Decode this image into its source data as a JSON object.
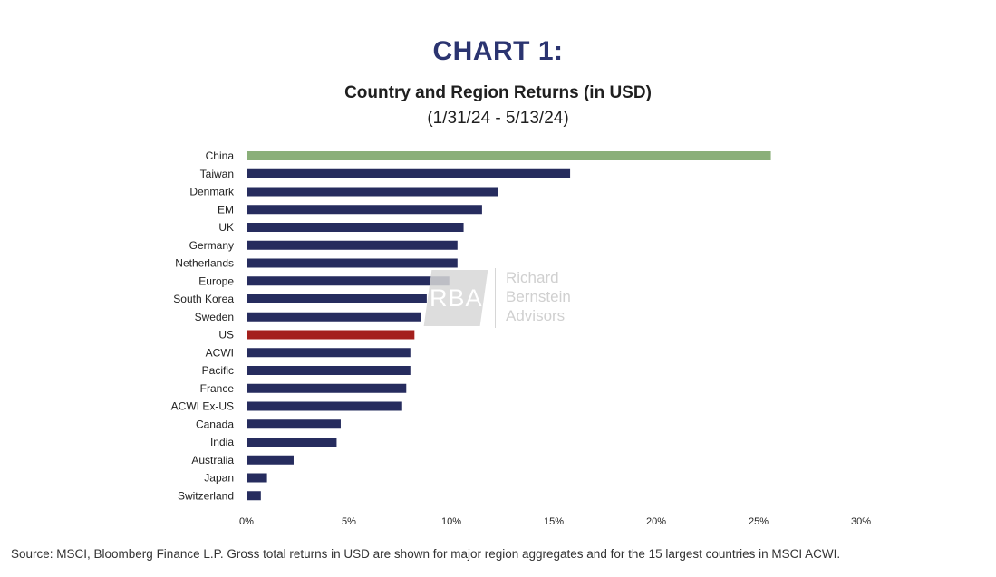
{
  "chart_data": {
    "type": "bar",
    "orientation": "horizontal",
    "title": "CHART 1:",
    "subtitle": "Country and Region Returns (in USD)",
    "period": "(1/31/24 - 5/13/24)",
    "categories": [
      "China",
      "Taiwan",
      "Denmark",
      "EM",
      "UK",
      "Germany",
      "Netherlands",
      "Europe",
      "South Korea",
      "Sweden",
      "US",
      "ACWI",
      "Pacific",
      "France",
      "ACWI Ex-US",
      "Canada",
      "India",
      "Australia",
      "Japan",
      "Switzerland"
    ],
    "values": [
      25.6,
      15.8,
      12.3,
      11.5,
      10.6,
      10.3,
      10.3,
      9.9,
      8.8,
      8.5,
      8.2,
      8.0,
      8.0,
      7.8,
      7.6,
      4.6,
      4.4,
      2.3,
      1.0,
      0.7
    ],
    "xlim": [
      0,
      30
    ],
    "xticks": [
      "0%",
      "5%",
      "10%",
      "15%",
      "20%",
      "25%",
      "30%"
    ],
    "grid": false,
    "colors": {
      "default": "#262c5e",
      "highlight_china": "#8aaf79",
      "highlight_us": "#a4201d",
      "title": "#2b3470"
    },
    "bar_colors": [
      "#8aaf79",
      "#262c5e",
      "#262c5e",
      "#262c5e",
      "#262c5e",
      "#262c5e",
      "#262c5e",
      "#262c5e",
      "#262c5e",
      "#262c5e",
      "#a4201d",
      "#262c5e",
      "#262c5e",
      "#262c5e",
      "#262c5e",
      "#262c5e",
      "#262c5e",
      "#262c5e",
      "#262c5e",
      "#262c5e"
    ]
  },
  "watermark": {
    "letters": "RBA",
    "line1": "Richard",
    "line2": "Bernstein",
    "line3": "Advisors"
  },
  "source": "Source: MSCI, Bloomberg Finance L.P. Gross total returns in USD are shown for major region aggregates and for the 15 largest countries in MSCI ACWI."
}
